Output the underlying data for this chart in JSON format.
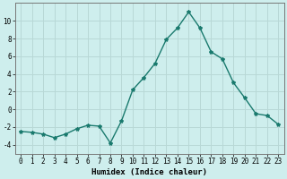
{
  "x": [
    0,
    1,
    2,
    3,
    4,
    5,
    6,
    7,
    8,
    9,
    10,
    11,
    12,
    13,
    14,
    15,
    16,
    17,
    18,
    19,
    20,
    21,
    22,
    23
  ],
  "y": [
    -2.5,
    -2.6,
    -2.8,
    -3.2,
    -2.8,
    -2.2,
    -1.8,
    -1.9,
    -3.8,
    -1.3,
    2.2,
    3.6,
    5.2,
    7.9,
    9.2,
    11.0,
    9.2,
    6.5,
    5.7,
    3.0,
    1.3,
    -0.5,
    -0.7,
    -1.7
  ],
  "line_color": "#1a7a6e",
  "marker": "*",
  "marker_size": 3,
  "bg_color": "#ceeeed",
  "grid_color": "#b8d8d6",
  "xlabel": "Humidex (Indice chaleur)",
  "ylim": [
    -5,
    12
  ],
  "xlim": [
    -0.5,
    23.5
  ],
  "yticks": [
    -4,
    -2,
    0,
    2,
    4,
    6,
    8,
    10
  ],
  "xticks": [
    0,
    1,
    2,
    3,
    4,
    5,
    6,
    7,
    8,
    9,
    10,
    11,
    12,
    13,
    14,
    15,
    16,
    17,
    18,
    19,
    20,
    21,
    22,
    23
  ],
  "xlabel_fontsize": 6.5,
  "tick_fontsize": 5.5,
  "line_width": 1.0
}
